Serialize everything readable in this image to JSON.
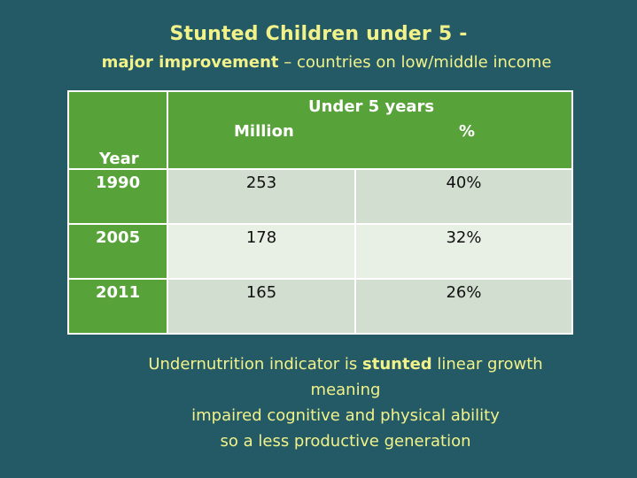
{
  "slide": {
    "title": "Stunted Children under 5 -",
    "subtitle_bold": "major improvement",
    "subtitle_rest": " – countries on low/middle income"
  },
  "table": {
    "year_header": "Year",
    "group_header": "Under 5 years",
    "col_million": "Million",
    "col_percent": "%",
    "rows": [
      {
        "year": "1990",
        "million": "253",
        "percent": "40%"
      },
      {
        "year": "2005",
        "million": "178",
        "percent": "32%"
      },
      {
        "year": "2011",
        "million": "165",
        "percent": "26%"
      }
    ]
  },
  "footer": {
    "line1_pre": "Undernutrition indicator is ",
    "line1_bold": "stunted",
    "line1_post": " linear growth",
    "line2": "meaning",
    "line3": "impaired cognitive and physical ability",
    "line4": "so a less productive generation"
  },
  "colors": {
    "background": "#235a66",
    "header_green": "#58a23a",
    "accent_text": "#f2f28a"
  }
}
